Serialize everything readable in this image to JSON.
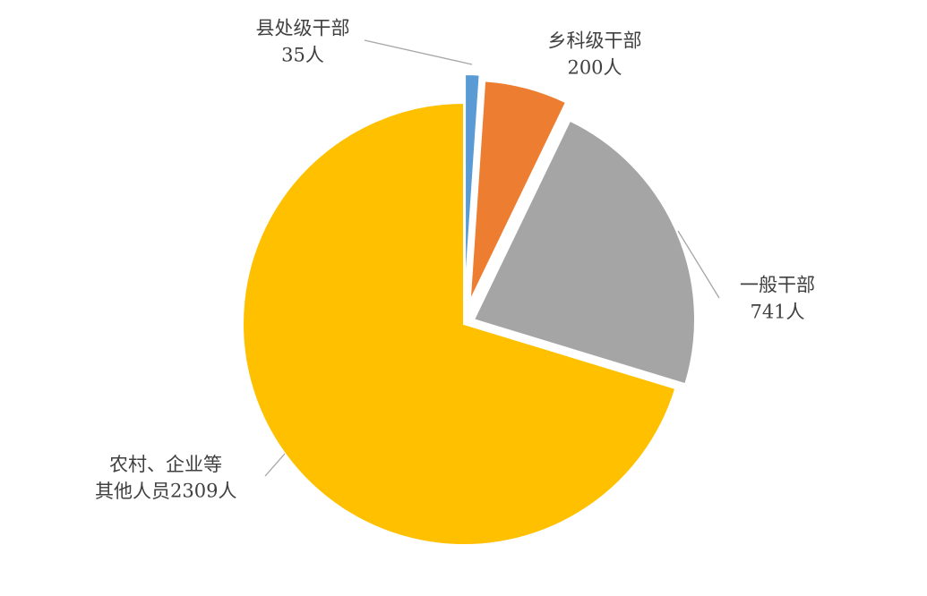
{
  "chart_data": {
    "type": "pie",
    "categories": [
      "县处级干部",
      "乡科级干部",
      "一般干部",
      "农村、企业等其他人员"
    ],
    "values": [
      35,
      200,
      741,
      2309
    ],
    "value_labels": [
      "35人",
      "200人",
      "741人",
      "2309人"
    ],
    "colors": [
      "#5b9bd5",
      "#ed7d31",
      "#a5a5a5",
      "#ffc000"
    ]
  }
}
